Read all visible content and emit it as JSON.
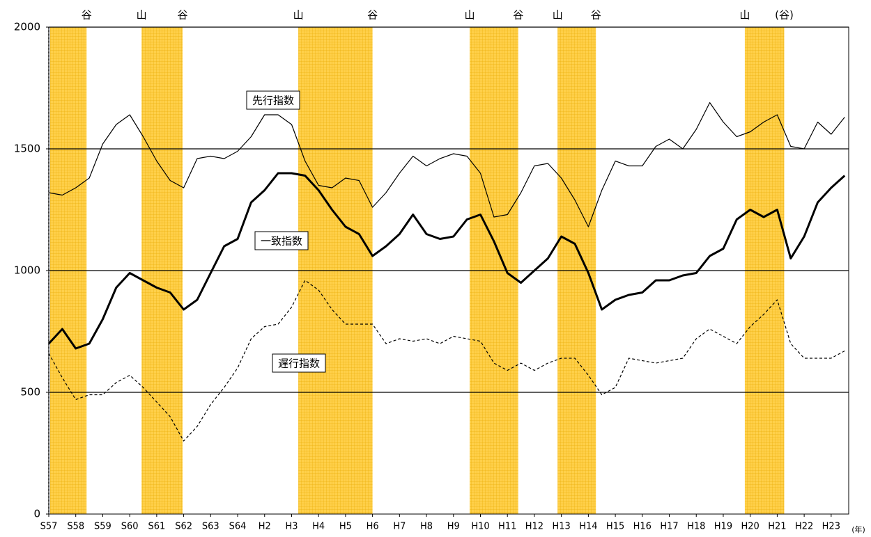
{
  "chart_data": {
    "type": "line",
    "x_unit": "(年)",
    "x": [
      1982.0,
      1982.5,
      1983.0,
      1983.5,
      1984.0,
      1984.5,
      1985.0,
      1985.5,
      1986.0,
      1986.5,
      1987.0,
      1987.5,
      1988.0,
      1988.5,
      1989.0,
      1989.5,
      1990.0,
      1990.5,
      1991.0,
      1991.5,
      1992.0,
      1992.5,
      1993.0,
      1993.5,
      1994.0,
      1994.5,
      1995.0,
      1995.5,
      1996.0,
      1996.5,
      1997.0,
      1997.5,
      1998.0,
      1998.5,
      1999.0,
      1999.5,
      2000.0,
      2000.5,
      2001.0,
      2001.5,
      2002.0,
      2002.5,
      2003.0,
      2003.5,
      2004.0,
      2004.5,
      2005.0,
      2005.5,
      2006.0,
      2006.5,
      2007.0,
      2007.5,
      2008.0,
      2008.5,
      2009.0,
      2009.5,
      2010.0,
      2010.5,
      2011.0,
      2011.5
    ],
    "series": [
      {
        "name": "先行指数",
        "color": "#000000",
        "width": 1.2,
        "dashed": false,
        "values": [
          1320,
          1310,
          1340,
          1380,
          1520,
          1600,
          1640,
          1550,
          1450,
          1370,
          1340,
          1460,
          1470,
          1460,
          1490,
          1550,
          1640,
          1640,
          1600,
          1450,
          1350,
          1340,
          1380,
          1370,
          1260,
          1320,
          1400,
          1470,
          1430,
          1460,
          1480,
          1470,
          1400,
          1220,
          1230,
          1320,
          1430,
          1440,
          1380,
          1290,
          1180,
          1330,
          1450,
          1430,
          1430,
          1510,
          1540,
          1500,
          1580,
          1690,
          1610,
          1550,
          1570,
          1610,
          1640,
          1510,
          1500,
          1610,
          1560,
          1630
        ]
      },
      {
        "name": "一致指数",
        "color": "#000000",
        "width": 3,
        "dashed": false,
        "values": [
          700,
          760,
          680,
          700,
          800,
          930,
          990,
          960,
          930,
          910,
          840,
          880,
          990,
          1100,
          1130,
          1280,
          1330,
          1400,
          1400,
          1390,
          1330,
          1250,
          1180,
          1150,
          1060,
          1100,
          1150,
          1230,
          1150,
          1130,
          1140,
          1210,
          1230,
          1120,
          990,
          950,
          1000,
          1050,
          1140,
          1110,
          990,
          840,
          880,
          900,
          910,
          960,
          960,
          980,
          990,
          1060,
          1090,
          1210,
          1250,
          1220,
          1250,
          1050,
          1140,
          1280,
          1340,
          1390
        ]
      },
      {
        "name": "遅行指数",
        "color": "#000000",
        "width": 1.2,
        "dashed": true,
        "values": [
          660,
          560,
          470,
          490,
          490,
          540,
          570,
          520,
          460,
          400,
          300,
          360,
          450,
          520,
          600,
          720,
          770,
          780,
          850,
          960,
          920,
          840,
          780,
          780,
          780,
          700,
          720,
          710,
          720,
          700,
          730,
          720,
          710,
          620,
          590,
          620,
          590,
          620,
          640,
          640,
          570,
          490,
          520,
          640,
          630,
          620,
          630,
          640,
          720,
          760,
          730,
          700,
          770,
          820,
          880,
          700,
          640,
          640,
          640,
          670
        ]
      }
    ],
    "recessions": [
      [
        1982.05,
        1983.4
      ],
      [
        1985.44,
        1986.96
      ],
      [
        1991.25,
        1994.0
      ],
      [
        1997.6,
        1999.4
      ],
      [
        2000.86,
        2002.28
      ],
      [
        2007.8,
        2009.26
      ]
    ],
    "turning_points": [
      {
        "label": "谷",
        "x": 1983.4
      },
      {
        "label": "山",
        "x": 1985.44
      },
      {
        "label": "谷",
        "x": 1986.96
      },
      {
        "label": "山",
        "x": 1991.25
      },
      {
        "label": "谷",
        "x": 1994.0
      },
      {
        "label": "山",
        "x": 1997.6
      },
      {
        "label": "谷",
        "x": 1999.4
      },
      {
        "label": "山",
        "x": 2000.86
      },
      {
        "label": "谷",
        "x": 2002.28
      },
      {
        "label": "山",
        "x": 2007.8
      },
      {
        "label": "(谷)",
        "x": 2009.26
      }
    ],
    "band_color": "#ffd04a",
    "xlim": [
      1982,
      2011.65
    ],
    "xticks": [
      {
        "value": 1982,
        "label": "S57"
      },
      {
        "value": 1983,
        "label": "S58"
      },
      {
        "value": 1984,
        "label": "S59"
      },
      {
        "value": 1985,
        "label": "S60"
      },
      {
        "value": 1986,
        "label": "S61"
      },
      {
        "value": 1987,
        "label": "S62"
      },
      {
        "value": 1988,
        "label": "S63"
      },
      {
        "value": 1989,
        "label": "S64"
      },
      {
        "value": 1990,
        "label": "H2"
      },
      {
        "value": 1991,
        "label": "H3"
      },
      {
        "value": 1992,
        "label": "H4"
      },
      {
        "value": 1993,
        "label": "H5"
      },
      {
        "value": 1994,
        "label": "H6"
      },
      {
        "value": 1995,
        "label": "H7"
      },
      {
        "value": 1996,
        "label": "H8"
      },
      {
        "value": 1997,
        "label": "H9"
      },
      {
        "value": 1998,
        "label": "H10"
      },
      {
        "value": 1999,
        "label": "H11"
      },
      {
        "value": 2000,
        "label": "H12"
      },
      {
        "value": 2001,
        "label": "H13"
      },
      {
        "value": 2002,
        "label": "H14"
      },
      {
        "value": 2003,
        "label": "H15"
      },
      {
        "value": 2004,
        "label": "H16"
      },
      {
        "value": 2005,
        "label": "H17"
      },
      {
        "value": 2006,
        "label": "H18"
      },
      {
        "value": 2007,
        "label": "H19"
      },
      {
        "value": 2008,
        "label": "H20"
      },
      {
        "value": 2009,
        "label": "H21"
      },
      {
        "value": 2010,
        "label": "H22"
      },
      {
        "value": 2011,
        "label": "H23"
      }
    ],
    "ylim": [
      0,
      2000
    ],
    "yticks": [
      0,
      500,
      1000,
      1500,
      2000
    ],
    "grid": true
  }
}
